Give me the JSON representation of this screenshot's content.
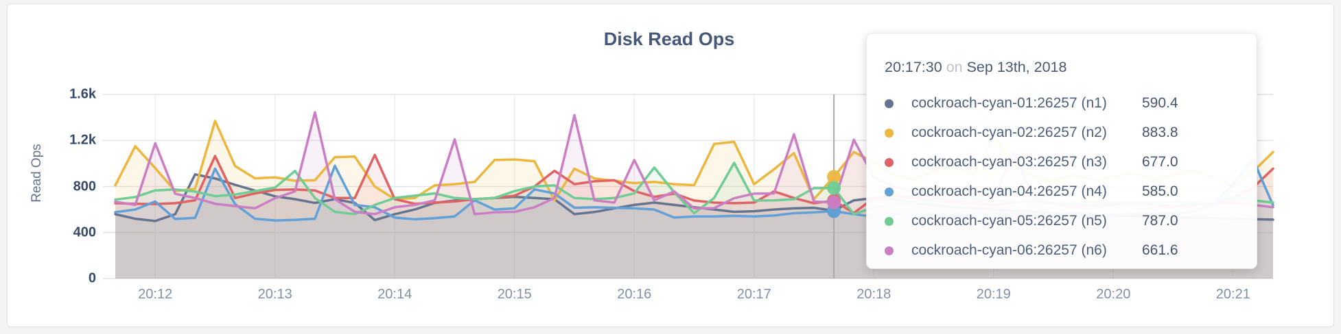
{
  "chart_data": {
    "type": "area",
    "title": "Disk Read Ops",
    "ylabel": "Read Ops",
    "ylim": [
      0,
      1600
    ],
    "grid": true,
    "x_start": "20:11:40",
    "x_step_seconds": 10,
    "hover_index": 36,
    "y_ticks": [
      {
        "label": "0",
        "v": 0
      },
      {
        "label": "400",
        "v": 400
      },
      {
        "label": "800",
        "v": 800
      },
      {
        "label": "1.2k",
        "v": 1200
      },
      {
        "label": "1.6k",
        "v": 1600
      }
    ],
    "x_ticks": [
      {
        "label": "20:12",
        "i": 2
      },
      {
        "label": "20:13",
        "i": 8
      },
      {
        "label": "20:14",
        "i": 14
      },
      {
        "label": "20:15",
        "i": 20
      },
      {
        "label": "20:16",
        "i": 26
      },
      {
        "label": "20:17",
        "i": 32
      },
      {
        "label": "20:18",
        "i": 38
      },
      {
        "label": "20:19",
        "i": 44
      },
      {
        "label": "20:20",
        "i": 50
      },
      {
        "label": "20:21",
        "i": 56
      }
    ],
    "series": [
      {
        "name": "cockroach-cyan-01:26257 (n1)",
        "short": "n1",
        "color": "#65748f",
        "values": [
          560,
          520,
          500,
          560,
          905,
          870,
          815,
          765,
          715,
          690,
          657,
          690,
          657,
          508,
          560,
          600,
          657,
          678,
          690,
          700,
          710,
          700,
          690,
          560,
          578,
          610,
          640,
          660,
          640,
          620,
          600,
          580,
          585,
          600,
          610,
          615,
          590.4,
          680,
          700,
          690,
          660,
          640,
          620,
          610,
          600,
          590,
          580,
          570,
          560,
          555,
          550,
          545,
          540,
          535,
          530,
          525,
          520,
          516,
          512
        ]
      },
      {
        "name": "cockroach-cyan-02:26257 (n2)",
        "short": "n2",
        "color": "#ecb73f",
        "values": [
          810,
          1150,
          960,
          760,
          780,
          1370,
          978,
          871,
          880,
          850,
          855,
          1055,
          1060,
          800,
          690,
          700,
          810,
          820,
          840,
          1030,
          1035,
          1020,
          680,
          955,
          870,
          850,
          830,
          840,
          820,
          812,
          1170,
          1188,
          820,
          950,
          1090,
          690,
          883.8,
          1100,
          1010,
          900,
          860,
          930,
          990,
          900,
          1240,
          1000,
          880,
          850,
          900,
          860,
          880,
          920,
          860,
          900,
          940,
          880,
          800,
          930,
          1100
        ]
      },
      {
        "name": "cockroach-cyan-03:26257 (n3)",
        "short": "n3",
        "color": "#e06262",
        "values": [
          655,
          650,
          648,
          655,
          680,
          1065,
          700,
          740,
          770,
          775,
          766,
          700,
          700,
          1075,
          690,
          650,
          660,
          670,
          690,
          700,
          720,
          800,
          937,
          820,
          845,
          855,
          760,
          710,
          738,
          678,
          660,
          655,
          660,
          758,
          700,
          655,
          677,
          570,
          700,
          720,
          700,
          680,
          660,
          650,
          640,
          660,
          680,
          650,
          630,
          640,
          650,
          660,
          640,
          630,
          640,
          650,
          700,
          790,
          955
        ]
      },
      {
        "name": "cockroach-cyan-04:26257 (n4)",
        "short": "n4",
        "color": "#61a1d8",
        "values": [
          577,
          600,
          670,
          518,
          528,
          955,
          647,
          520,
          505,
          510,
          520,
          980,
          640,
          620,
          530,
          515,
          525,
          540,
          680,
          600,
          610,
          775,
          740,
          615,
          620,
          615,
          610,
          600,
          530,
          540,
          540,
          545,
          540,
          548,
          568,
          575,
          585,
          560,
          537,
          556,
          570,
          560,
          550,
          560,
          570,
          560,
          550,
          560,
          570,
          560,
          555,
          560,
          565,
          570,
          580,
          650,
          820,
          1035,
          637
        ]
      },
      {
        "name": "cockroach-cyan-05:26257 (n5)",
        "short": "n5",
        "color": "#6fcc93",
        "values": [
          686,
          709,
          766,
          774,
          756,
          716,
          730,
          760,
          790,
          935,
          700,
          580,
          560,
          640,
          700,
          720,
          740,
          700,
          690,
          700,
          760,
          800,
          810,
          700,
          690,
          700,
          740,
          965,
          750,
          568,
          700,
          1005,
          678,
          680,
          690,
          786,
          787,
          559,
          619,
          640,
          660,
          680,
          700,
          690,
          680,
          670,
          660,
          650,
          660,
          670,
          660,
          650,
          660,
          670,
          660,
          650,
          710,
          680,
          660
        ]
      },
      {
        "name": "cockroach-cyan-06:26257 (n6)",
        "short": "n6",
        "color": "#cb7ec4",
        "values": [
          667,
          640,
          1176,
          737,
          700,
          650,
          630,
          611,
          698,
          758,
          1445,
          690,
          580,
          560,
          620,
          640,
          680,
          1210,
          560,
          575,
          580,
          620,
          700,
          1420,
          680,
          660,
          1030,
          680,
          758,
          610,
          612,
          698,
          738,
          740,
          1254,
          669,
          661.6,
          1206,
          878,
          800,
          750,
          700,
          680,
          660,
          700,
          1100,
          700,
          650,
          640,
          630,
          640,
          650,
          640,
          630,
          640,
          650,
          660,
          640,
          620
        ]
      }
    ]
  },
  "tooltip": {
    "time": "20:17:30",
    "on": "on",
    "date": "Sep 13th, 2018",
    "rows": [
      {
        "name": "cockroach-cyan-01:26257 (n1)",
        "value": "590.4",
        "color": "#65748f"
      },
      {
        "name": "cockroach-cyan-02:26257 (n2)",
        "value": "883.8",
        "color": "#ecb73f"
      },
      {
        "name": "cockroach-cyan-03:26257 (n3)",
        "value": "677.0",
        "color": "#e06262"
      },
      {
        "name": "cockroach-cyan-04:26257 (n4)",
        "value": "585.0",
        "color": "#61a1d8"
      },
      {
        "name": "cockroach-cyan-05:26257 (n5)",
        "value": "787.0",
        "color": "#cb7ec4"
      },
      {
        "name": "cockroach-cyan-06:26257 (n6)",
        "value": "661.6",
        "color": "#cb7ec4"
      }
    ]
  }
}
